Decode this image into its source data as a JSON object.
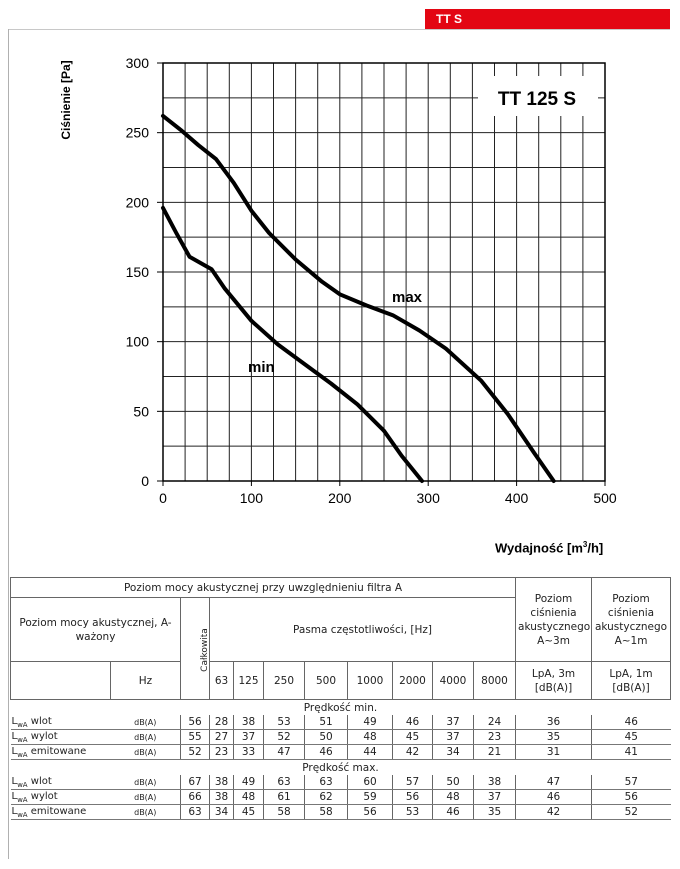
{
  "badge": "TT S",
  "chart_data": {
    "type": "line",
    "title": "TT 125 S",
    "xlabel_text": "Wydajność [m",
    "xlabel_sup": "3",
    "xlabel_tail": "/h]",
    "ylabel": "Ciśnienie [Pa]",
    "xlim": [
      0,
      500
    ],
    "ylim": [
      0,
      300
    ],
    "x_ticks": [
      0,
      100,
      200,
      300,
      400,
      500
    ],
    "y_ticks": [
      0,
      50,
      100,
      150,
      200,
      250,
      300
    ],
    "grid": true,
    "series": [
      {
        "name": "max",
        "points": [
          [
            0,
            262
          ],
          [
            20,
            252
          ],
          [
            40,
            241
          ],
          [
            60,
            231
          ],
          [
            80,
            214
          ],
          [
            100,
            194
          ],
          [
            120,
            178
          ],
          [
            150,
            159
          ],
          [
            180,
            143
          ],
          [
            200,
            134
          ],
          [
            230,
            126
          ],
          [
            260,
            119
          ],
          [
            290,
            108
          ],
          [
            320,
            95
          ],
          [
            360,
            72
          ],
          [
            390,
            48
          ],
          [
            420,
            20
          ],
          [
            442,
            0
          ]
        ]
      },
      {
        "name": "min",
        "points": [
          [
            0,
            196
          ],
          [
            15,
            178
          ],
          [
            30,
            161
          ],
          [
            55,
            152
          ],
          [
            70,
            138
          ],
          [
            100,
            115
          ],
          [
            130,
            98
          ],
          [
            160,
            84
          ],
          [
            190,
            70
          ],
          [
            220,
            55
          ],
          [
            250,
            36
          ],
          [
            270,
            18
          ],
          [
            293,
            0
          ]
        ]
      }
    ]
  },
  "table": {
    "title": "Poziom mocy akustycznej przy uwzględnieniu filtra A",
    "row_label_header": "Poziom mocy akustycznej, A-ważony",
    "total_header": "Całkowita",
    "bands_header": "Pasma częstotliwości, [Hz]",
    "lpa3_header": "Poziom ciśnienia akustycznego A~3m",
    "lpa1_header": "Poziom ciśnienia akustycznego A~1m",
    "hz_label": "Hz",
    "bands": [
      "63",
      "125",
      "250",
      "500",
      "1000",
      "2000",
      "4000",
      "8000"
    ],
    "lpa3_unit": "LpA, 3m [dB(A)]",
    "lpa1_unit": "LpA, 1m [dB(A)]",
    "sections": [
      {
        "label": "Prędkość min.",
        "rows": [
          {
            "name": "L",
            "sub": "wA",
            "suffix": " wlot",
            "unit": "dB(A)",
            "total": "56",
            "values": [
              "28",
              "38",
              "53",
              "51",
              "49",
              "46",
              "37",
              "24"
            ],
            "lpa3": "36",
            "lpa1": "46"
          },
          {
            "name": "L",
            "sub": "wA",
            "suffix": " wylot",
            "unit": "dB(A)",
            "total": "55",
            "values": [
              "27",
              "37",
              "52",
              "50",
              "48",
              "45",
              "37",
              "23"
            ],
            "lpa3": "35",
            "lpa1": "45"
          },
          {
            "name": "L",
            "sub": "wA",
            "suffix": " emitowane",
            "unit": "dB(A)",
            "total": "52",
            "values": [
              "23",
              "33",
              "47",
              "46",
              "44",
              "42",
              "34",
              "21"
            ],
            "lpa3": "31",
            "lpa1": "41"
          }
        ]
      },
      {
        "label": "Prędkość max.",
        "rows": [
          {
            "name": "L",
            "sub": "wA",
            "suffix": " wlot",
            "unit": "dB(A)",
            "total": "67",
            "values": [
              "38",
              "49",
              "63",
              "63",
              "60",
              "57",
              "50",
              "38"
            ],
            "lpa3": "47",
            "lpa1": "57"
          },
          {
            "name": "L",
            "sub": "wA",
            "suffix": " wylot",
            "unit": "dB(A)",
            "total": "66",
            "values": [
              "38",
              "48",
              "61",
              "62",
              "59",
              "56",
              "48",
              "37"
            ],
            "lpa3": "46",
            "lpa1": "56"
          },
          {
            "name": "L",
            "sub": "wA",
            "suffix": " emitowane",
            "unit": "dB(A)",
            "total": "63",
            "values": [
              "34",
              "45",
              "58",
              "58",
              "56",
              "53",
              "46",
              "35"
            ],
            "lpa3": "42",
            "lpa1": "52"
          }
        ]
      }
    ]
  }
}
